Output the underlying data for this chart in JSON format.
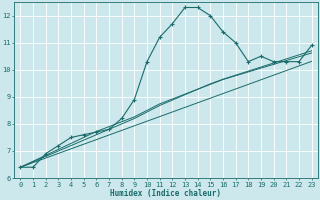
{
  "x": [
    0,
    1,
    2,
    3,
    4,
    5,
    6,
    7,
    8,
    9,
    10,
    11,
    12,
    13,
    14,
    15,
    16,
    17,
    18,
    19,
    20,
    21,
    22,
    23
  ],
  "y_main": [
    6.4,
    6.4,
    6.9,
    7.2,
    7.5,
    7.6,
    7.7,
    7.8,
    8.2,
    8.9,
    10.3,
    11.2,
    11.7,
    12.3,
    12.3,
    12.0,
    11.4,
    11.0,
    10.3,
    10.5,
    10.3,
    10.3,
    10.3,
    10.9
  ],
  "y_line1": [
    6.4,
    6.57,
    6.74,
    6.91,
    7.08,
    7.25,
    7.42,
    7.59,
    7.76,
    7.93,
    8.1,
    8.27,
    8.44,
    8.61,
    8.78,
    8.95,
    9.12,
    9.29,
    9.46,
    9.63,
    9.8,
    9.97,
    10.14,
    10.31
  ],
  "y_line2": [
    6.4,
    6.62,
    6.84,
    7.06,
    7.28,
    7.5,
    7.72,
    7.9,
    8.08,
    8.26,
    8.5,
    8.74,
    8.92,
    9.1,
    9.28,
    9.46,
    9.64,
    9.78,
    9.92,
    10.06,
    10.2,
    10.34,
    10.48,
    10.62
  ],
  "y_line3": [
    6.4,
    6.6,
    6.8,
    7.0,
    7.2,
    7.4,
    7.6,
    7.8,
    8.0,
    8.2,
    8.44,
    8.68,
    8.88,
    9.08,
    9.28,
    9.48,
    9.65,
    9.8,
    9.95,
    10.1,
    10.25,
    10.4,
    10.55,
    10.7
  ],
  "bg_color": "#cce8ec",
  "line_color": "#1a6b6b",
  "grid_color": "#ffffff",
  "ylim": [
    6,
    12.5
  ],
  "xlim": [
    -0.5,
    23.5
  ],
  "xlabel": "Humidex (Indice chaleur)",
  "xlabel_fontsize": 5.5,
  "tick_fontsize": 5.0,
  "yticks": [
    6,
    7,
    8,
    9,
    10,
    11,
    12
  ],
  "xticks": [
    0,
    1,
    2,
    3,
    4,
    5,
    6,
    7,
    8,
    9,
    10,
    11,
    12,
    13,
    14,
    15,
    16,
    17,
    18,
    19,
    20,
    21,
    22,
    23
  ]
}
